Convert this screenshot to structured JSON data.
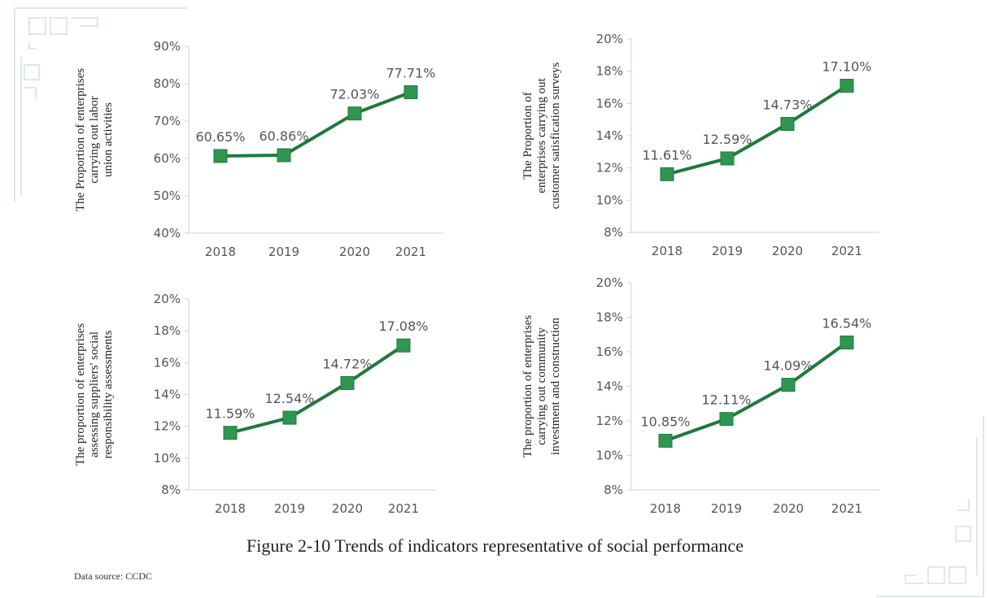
{
  "figure": {
    "caption": "Figure 2-10 Trends of indicators representative of social performance",
    "source": "Data source: CCDC",
    "line_color": "#1e7a3c",
    "marker_color": "#2f9650",
    "ornament_color": "#dcebe0"
  },
  "chart_data": [
    {
      "type": "line",
      "categories": [
        "2018",
        "2019",
        "2020",
        "2021"
      ],
      "values": [
        60.65,
        60.86,
        72.03,
        77.71
      ],
      "data_labels": [
        "60.65%",
        "60.86%",
        "72.03%",
        "77.71%"
      ],
      "ylim": [
        40,
        90
      ],
      "yticks": [
        "40%",
        "50%",
        "60%",
        "70%",
        "80%",
        "90%"
      ],
      "ylabel_lines": [
        "The Proportion of enterprises",
        "carrying out labor",
        "union activities"
      ]
    },
    {
      "type": "line",
      "categories": [
        "2018",
        "2019",
        "2020",
        "2021"
      ],
      "values": [
        11.61,
        12.59,
        14.73,
        17.1
      ],
      "data_labels": [
        "11.61%",
        "12.59%",
        "14.73%",
        "17.10%"
      ],
      "ylim": [
        8,
        20
      ],
      "yticks": [
        "8%",
        "10%",
        "12%",
        "14%",
        "16%",
        "18%",
        "20%"
      ],
      "ylabel_lines": [
        "The Proportion of",
        "enterprises carrying out",
        "customer satisfication surveys"
      ]
    },
    {
      "type": "line",
      "categories": [
        "2018",
        "2019",
        "2020",
        "2021"
      ],
      "values": [
        11.59,
        12.54,
        14.72,
        17.08
      ],
      "data_labels": [
        "11.59%",
        "12.54%",
        "14.72%",
        "17.08%"
      ],
      "ylim": [
        8,
        20
      ],
      "yticks": [
        "8%",
        "10%",
        "12%",
        "14%",
        "16%",
        "18%",
        "20%"
      ],
      "ylabel_lines": [
        "The proportion of enterprises",
        "assessing suppliers' social",
        "responsibility assessments"
      ]
    },
    {
      "type": "line",
      "categories": [
        "2018",
        "2019",
        "2020",
        "2021"
      ],
      "values": [
        10.85,
        12.11,
        14.09,
        16.54
      ],
      "data_labels": [
        "10.85%",
        "12.11%",
        "14.09%",
        "16.54%"
      ],
      "ylim": [
        8,
        20
      ],
      "yticks": [
        "8%",
        "10%",
        "12%",
        "14%",
        "16%",
        "18%",
        "20%"
      ],
      "ylabel_lines": [
        "The proportion of enterprises",
        "carrying out community",
        "investment and construction"
      ]
    }
  ]
}
